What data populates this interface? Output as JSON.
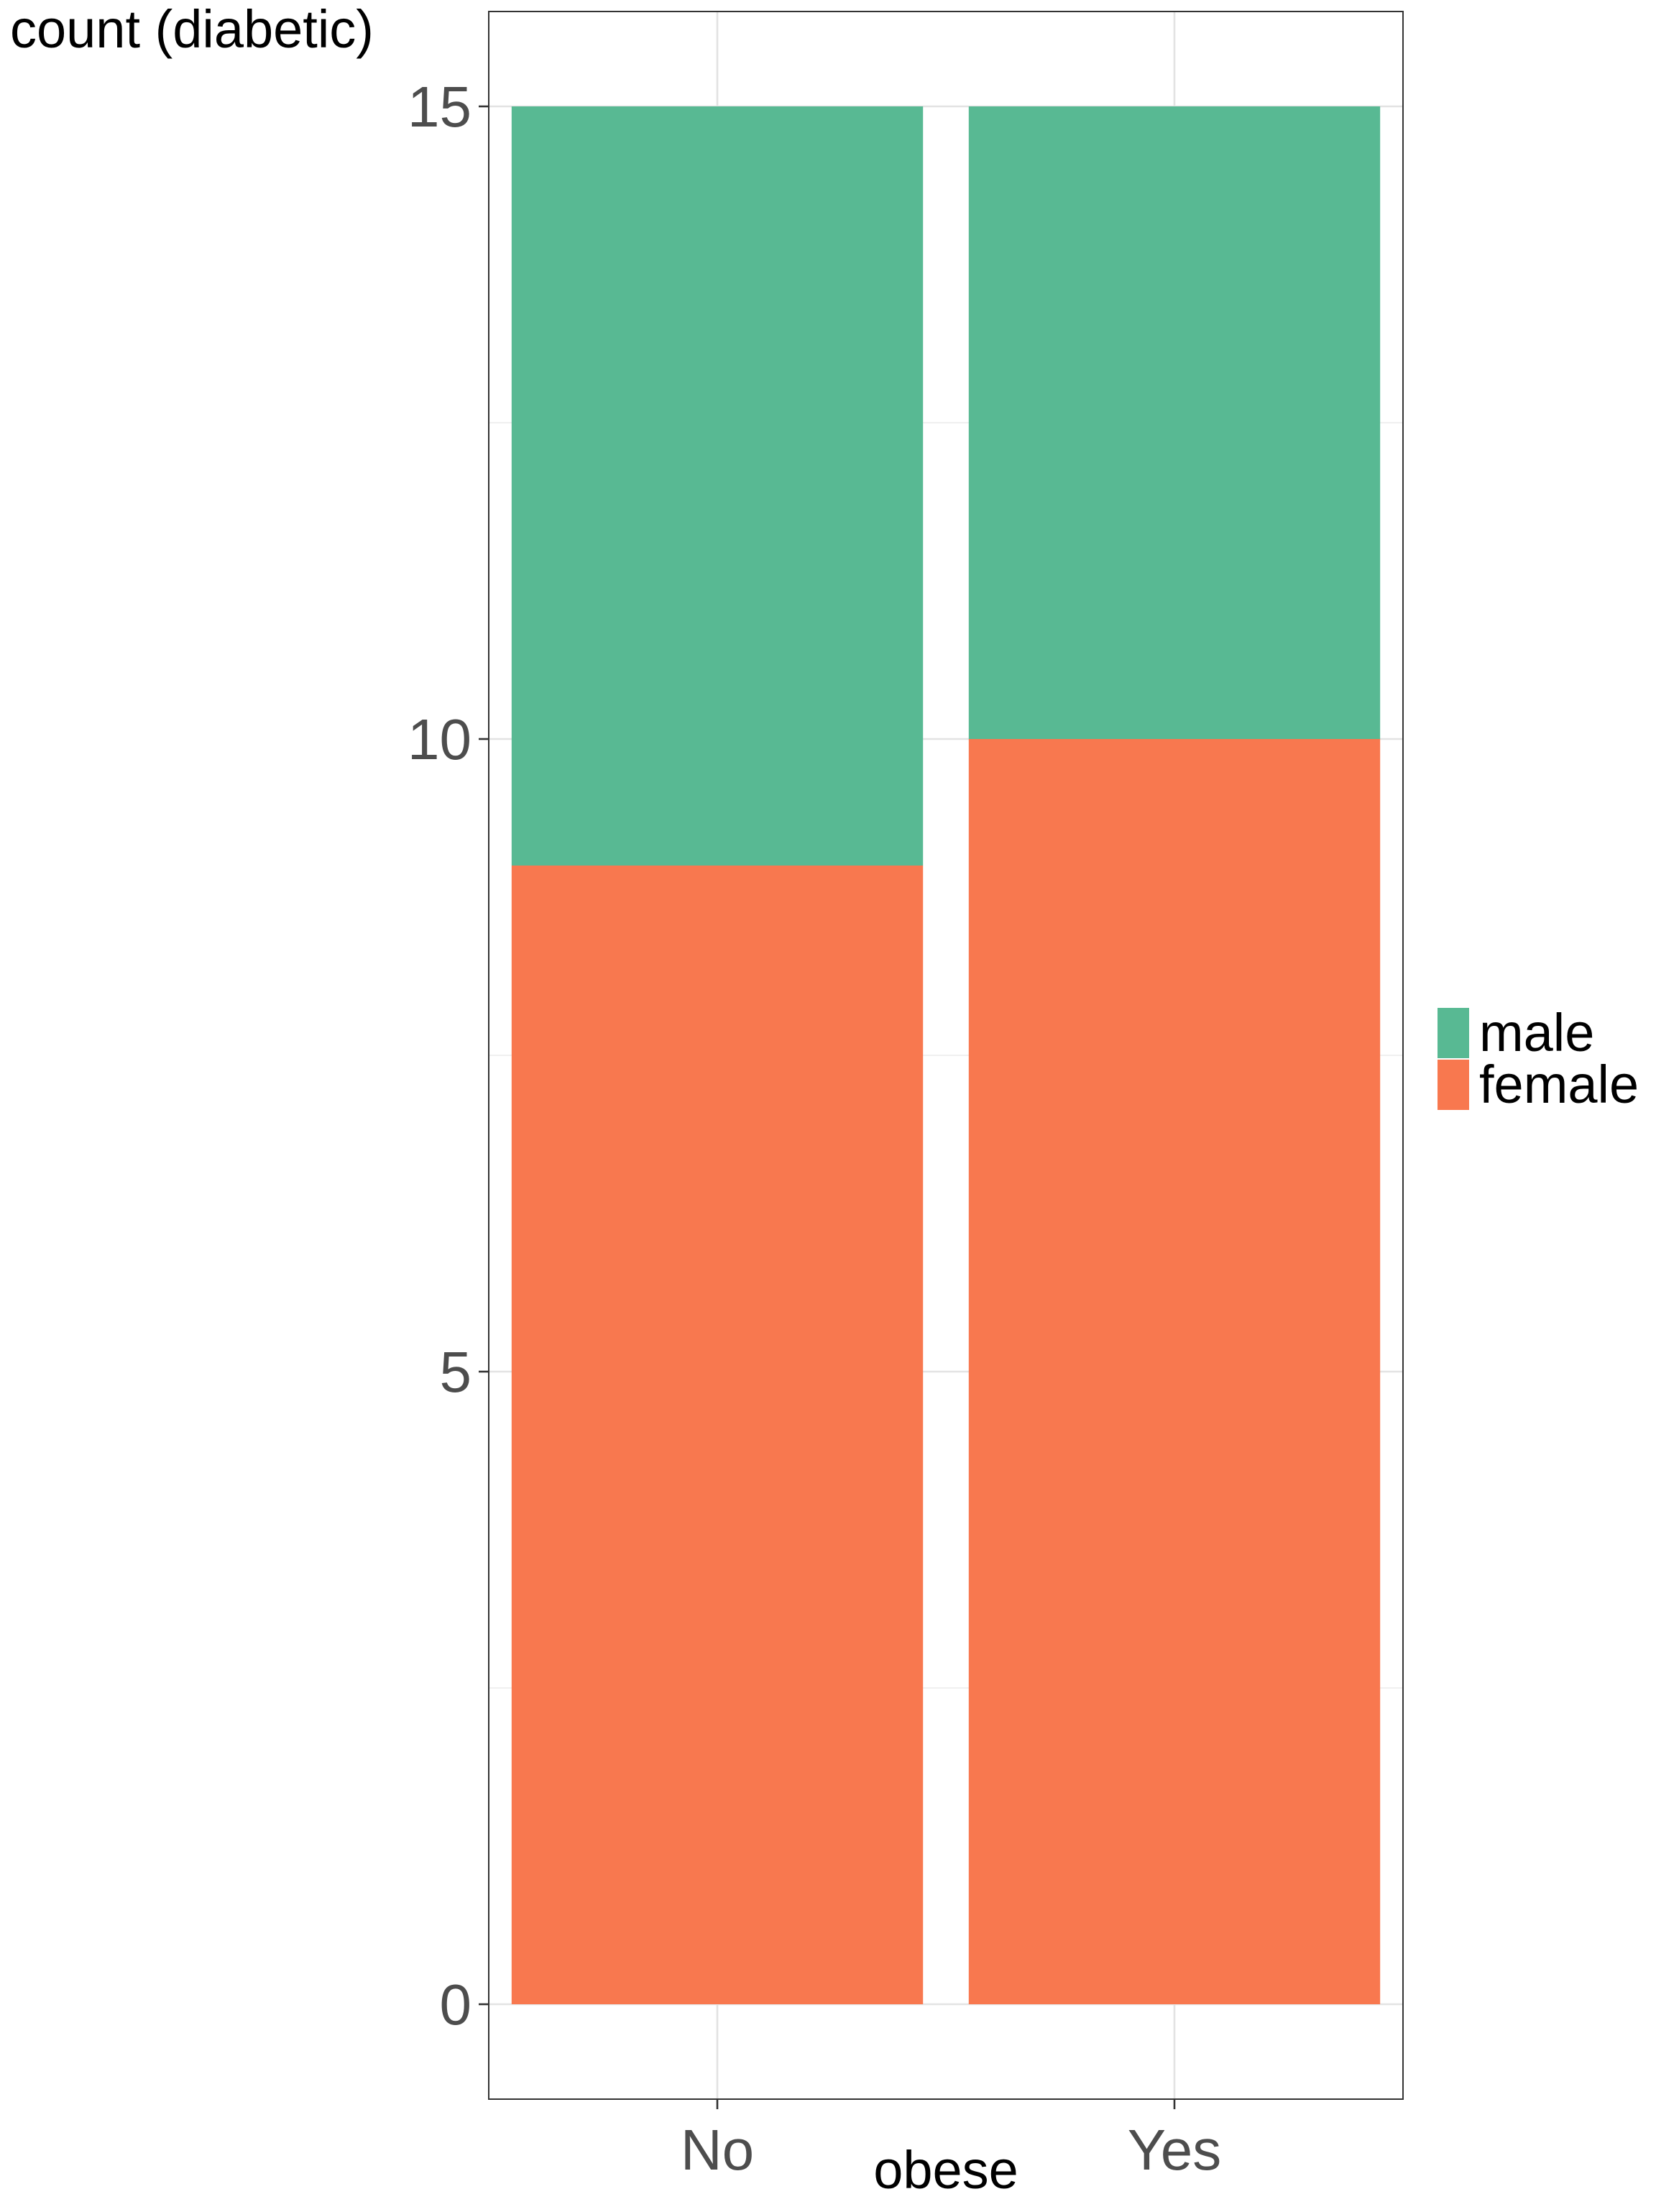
{
  "chart_data": {
    "type": "bar",
    "stacked": true,
    "title": "",
    "xlabel": "obese",
    "ylabel": "count (diabetic)",
    "categories": [
      "No",
      "Yes"
    ],
    "series": [
      {
        "name": "female",
        "values": [
          9,
          10
        ],
        "color": "#F8784F"
      },
      {
        "name": "male",
        "values": [
          6,
          5
        ],
        "color": "#58B993"
      }
    ],
    "ylim": [
      -0.75,
      15.75
    ],
    "yticks": [
      0,
      5,
      10,
      15
    ],
    "y_tick_labels": [
      "0",
      "5",
      "10",
      "15"
    ],
    "x_tick_labels": [
      "No",
      "Yes"
    ],
    "grid": true,
    "legend": {
      "placement": "right",
      "entries": [
        "male",
        "female"
      ]
    }
  }
}
